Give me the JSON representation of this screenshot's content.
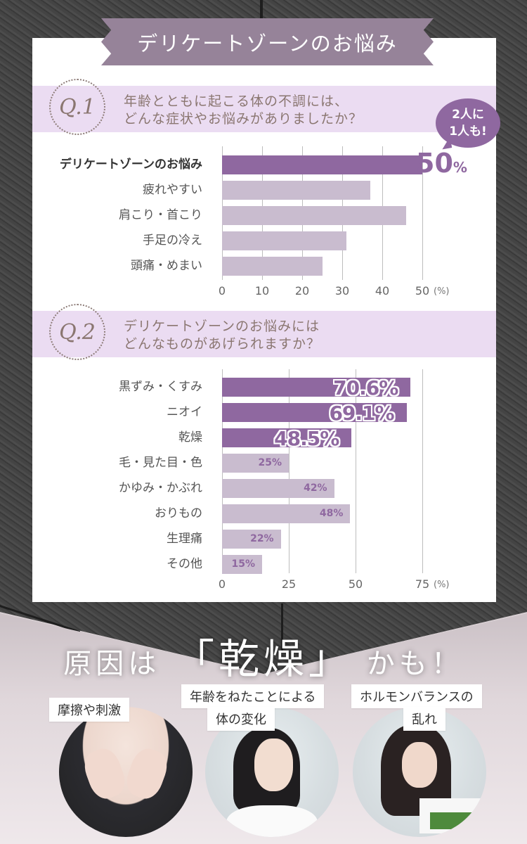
{
  "header": {
    "title": "デリケートゾーンのお悩み"
  },
  "q1": {
    "badge": "Q.1",
    "question_line1": "年齢とともに起こる体の不調には、",
    "question_line2": "どんな症状やお悩みがありましたか？",
    "bubble_line1": "2人に",
    "bubble_line2": "1人も!",
    "highlight_value": "50",
    "highlight_unit": "%"
  },
  "q2": {
    "badge": "Q.2",
    "question_line1": "デリケートゾーンのお悩みには",
    "question_line2": "どんなものがあげられますか？"
  },
  "conclusion": {
    "headline_pre": "原因は",
    "headline_key": "「乾燥」",
    "headline_post": "かも！",
    "causes": [
      {
        "label_line1": "摩擦や刺激",
        "label_line2": ""
      },
      {
        "label_line1": "年齢をねたことによる",
        "label_line2": "体の変化"
      },
      {
        "label_line1": "ホルモンバランスの",
        "label_line2": "乱れ"
      }
    ]
  },
  "chart_data": [
    {
      "type": "bar",
      "orientation": "horizontal",
      "title": "年齢とともに起こる体の不調には、どんな症状やお悩みがありましたか？",
      "categories": [
        "デリケートゾーンのお悩み",
        "疲れやすい",
        "肩こり・首こり",
        "手足の冷え",
        "頭痛・めまい"
      ],
      "values": [
        50,
        37,
        46,
        31,
        25
      ],
      "highlight": [
        true,
        false,
        false,
        false,
        false
      ],
      "value_labels": [
        "50%",
        "",
        "",
        "",
        ""
      ],
      "xlabel": "(%)",
      "ylabel": "",
      "xlim": [
        0,
        50
      ],
      "ticks": [
        "0",
        "10",
        "20",
        "30",
        "40",
        "50"
      ],
      "grid": true,
      "colors": {
        "highlight": "#8f68a0",
        "normal": "#c9bccf"
      }
    },
    {
      "type": "bar",
      "orientation": "horizontal",
      "title": "デリケートゾーンのお悩みにはどんなものがあげられますか？",
      "categories": [
        "黒ずみ・くすみ",
        "ニオイ",
        "乾燥",
        "毛・見た目・色",
        "かゆみ・かぶれ",
        "おりもの",
        "生理痛",
        "その他"
      ],
      "values": [
        70.6,
        69.1,
        48.5,
        25,
        42,
        48,
        22,
        15
      ],
      "highlight": [
        true,
        true,
        true,
        false,
        false,
        false,
        false,
        false
      ],
      "value_labels": [
        "70.6%",
        "69.1%",
        "48.5%",
        "25%",
        "42%",
        "48%",
        "22%",
        "15%"
      ],
      "xlabel": "(%)",
      "ylabel": "",
      "xlim": [
        0,
        75
      ],
      "ticks": [
        "0",
        "25",
        "50",
        "75"
      ],
      "grid": true,
      "colors": {
        "highlight": "#8f68a0",
        "normal": "#c9bccf"
      }
    }
  ]
}
